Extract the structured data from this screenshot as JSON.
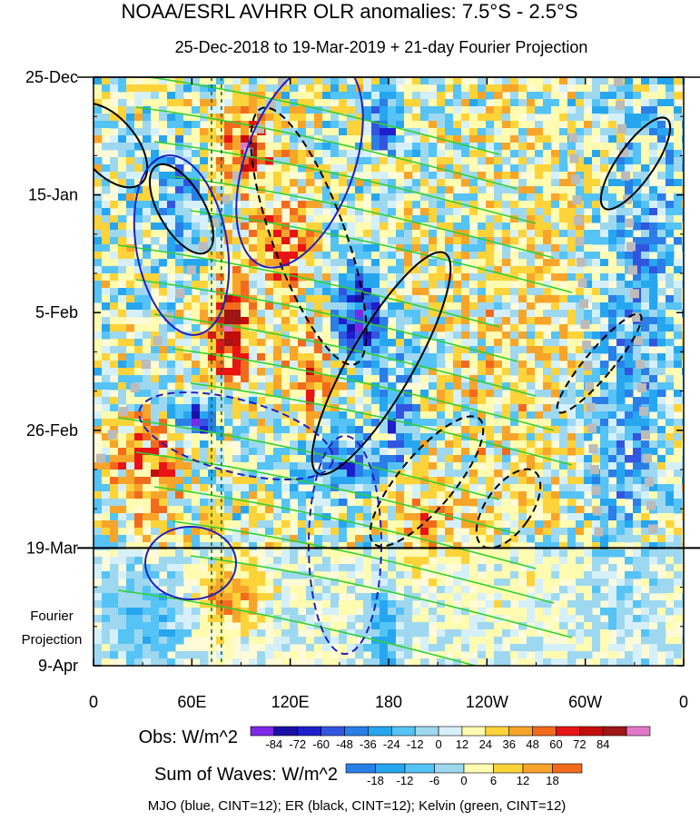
{
  "chart_data": {
    "type": "heatmap",
    "title": "NOAA/ESRL AVHRR OLR anomalies: 7.5°S - 2.5°S",
    "subtitle": "25-Dec-2018 to 19-Mar-2019 + 21-day Fourier Projection",
    "x_ticks": [
      "0",
      "60E",
      "120E",
      "180",
      "120W",
      "60W",
      "0"
    ],
    "x_tick_values": [
      0,
      60,
      120,
      180,
      240,
      300,
      360
    ],
    "y_ticks": [
      "25-Dec",
      "15-Jan",
      "5-Feb",
      "26-Feb",
      "19-Mar",
      "9-Apr"
    ],
    "y_tick_values": [
      0,
      21,
      42,
      63,
      84,
      105
    ],
    "xlim": [
      0,
      360
    ],
    "ylim_days": [
      0,
      105
    ],
    "projection_start_day": 84,
    "projection_label": [
      "Fourier",
      "Projection"
    ],
    "marker_longitudes": [
      72,
      78
    ],
    "obs_legend": {
      "label": "Obs: W/m^2",
      "ticks": [
        "-84",
        "-72",
        "-60",
        "-48",
        "-36",
        "-24",
        "-12",
        "0",
        "12",
        "24",
        "36",
        "48",
        "60",
        "72",
        "84"
      ],
      "colors": [
        "#7d28e6",
        "#1a10a8",
        "#1e1ecc",
        "#3255e0",
        "#2a7ee8",
        "#27a6f0",
        "#55c3f5",
        "#9ed8f0",
        "#d6f0fa",
        "#fffbb0",
        "#fdd33a",
        "#f7a52a",
        "#f26b1d",
        "#e81414",
        "#c40c0c",
        "#a01515",
        "#e278c8"
      ]
    },
    "waves_legend": {
      "label": "Sum of Waves: W/m^2",
      "ticks": [
        "-18",
        "-12",
        "-6",
        "0",
        "6",
        "12",
        "18"
      ],
      "colors": [
        "#2a7ee8",
        "#27a6f0",
        "#55c3f5",
        "#9ed8f0",
        "#fffbb0",
        "#fdd33a",
        "#f7a52a",
        "#f26b1d"
      ]
    },
    "caption": "MJO (blue, CINT=12); ER (black, CINT=12); Kelvin (green, CINT=12)",
    "contour_colors": {
      "mjo": "#2020c0",
      "er": "#000000",
      "kelvin": "#30d030"
    }
  }
}
